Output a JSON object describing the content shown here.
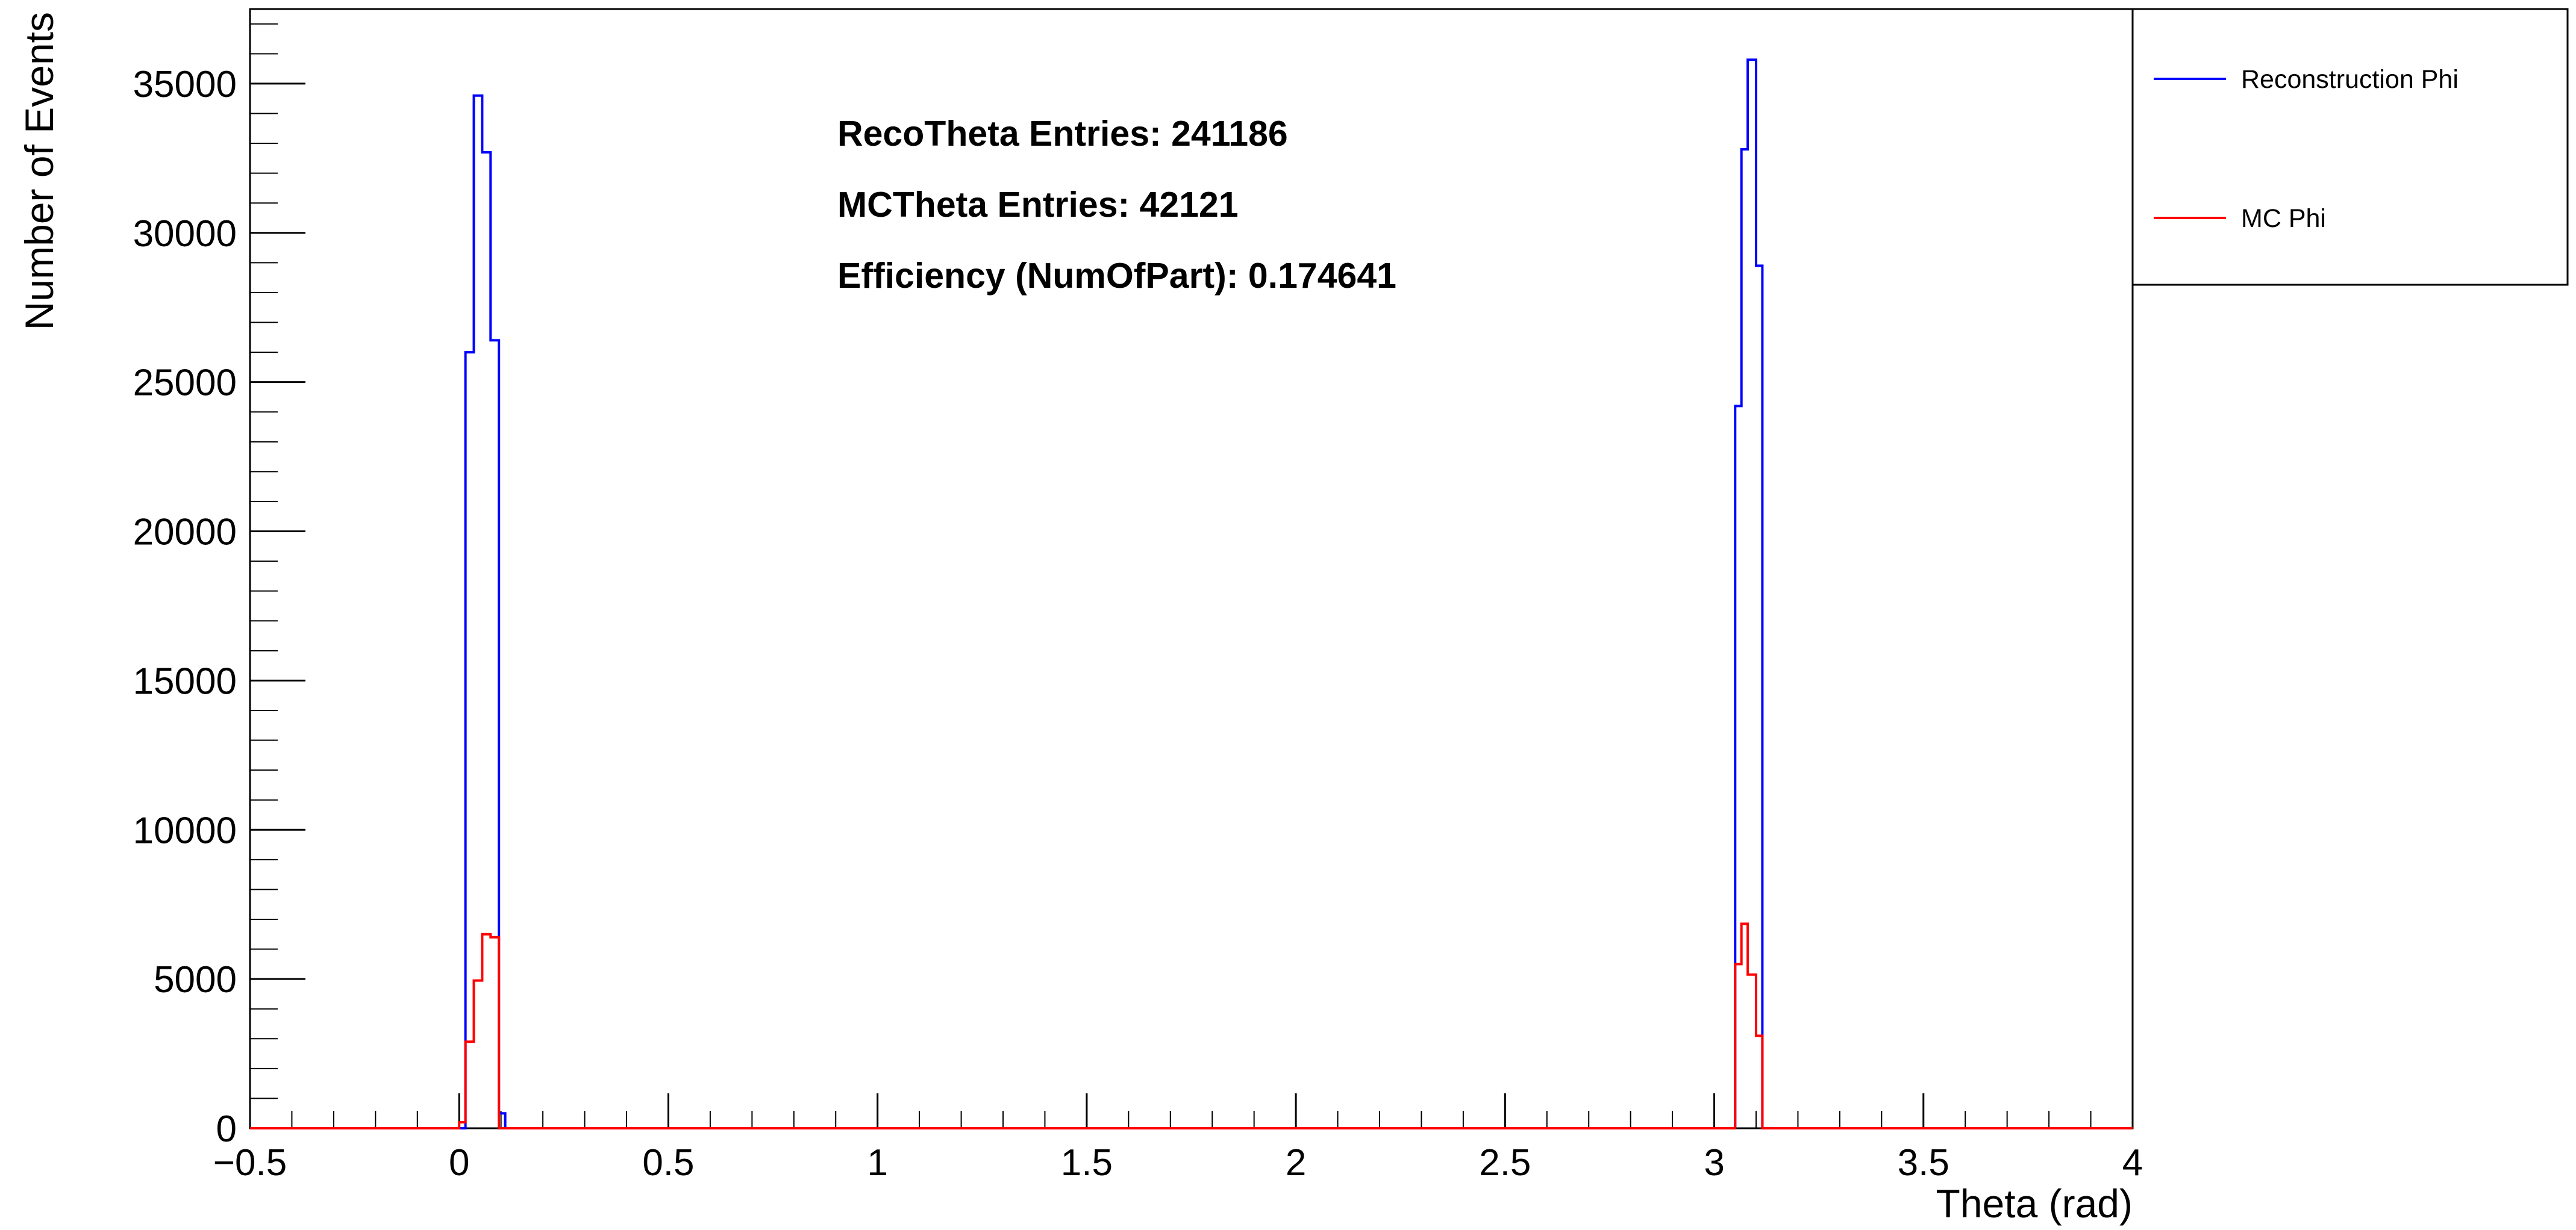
{
  "chart_data": {
    "type": "histogram",
    "xlabel": "Theta (rad)",
    "ylabel": "Number of Events",
    "xlim": [
      -0.5,
      4.0
    ],
    "ylim": [
      0,
      37500
    ],
    "x_ticks": [
      -0.5,
      0,
      0.5,
      1,
      1.5,
      2,
      2.5,
      3,
      3.5,
      4
    ],
    "x_tick_labels": [
      "−0.5",
      "0",
      "0.5",
      "1",
      "1.5",
      "2",
      "2.5",
      "3",
      "3.5",
      "4"
    ],
    "y_ticks": [
      0,
      5000,
      10000,
      15000,
      20000,
      25000,
      30000,
      35000
    ],
    "y_tick_labels": [
      "0",
      "5000",
      "10000",
      "15000",
      "20000",
      "25000",
      "30000",
      "35000"
    ],
    "grid": false,
    "legend_position": "top-right, outside plot frame",
    "stats": [
      "RecoTheta Entries: 241186",
      "MCTheta Entries: 42121",
      "Efficiency (NumOfPart): 0.174641"
    ],
    "series": [
      {
        "name": "Reconstruction Phi",
        "color": "#0000ff",
        "bins": [
          {
            "x0": 0.015,
            "x1": 0.035,
            "value": 26000
          },
          {
            "x0": 0.035,
            "x1": 0.055,
            "value": 34600
          },
          {
            "x0": 0.055,
            "x1": 0.075,
            "value": 32700
          },
          {
            "x0": 0.075,
            "x1": 0.095,
            "value": 26400
          },
          {
            "x0": 0.095,
            "x1": 0.11,
            "value": 500
          },
          {
            "x0": 3.05,
            "x1": 3.065,
            "value": 24200
          },
          {
            "x0": 3.065,
            "x1": 3.08,
            "value": 32800
          },
          {
            "x0": 3.08,
            "x1": 3.1,
            "value": 35800
          },
          {
            "x0": 3.1,
            "x1": 3.115,
            "value": 28900
          }
        ]
      },
      {
        "name": "MC Phi",
        "color": "#ff0000",
        "bins": [
          {
            "x0": 0.0,
            "x1": 0.015,
            "value": 200
          },
          {
            "x0": 0.015,
            "x1": 0.035,
            "value": 2900
          },
          {
            "x0": 0.035,
            "x1": 0.055,
            "value": 4950
          },
          {
            "x0": 0.055,
            "x1": 0.075,
            "value": 6500
          },
          {
            "x0": 0.075,
            "x1": 0.095,
            "value": 6400
          },
          {
            "x0": 3.05,
            "x1": 3.065,
            "value": 5500
          },
          {
            "x0": 3.065,
            "x1": 3.08,
            "value": 6850
          },
          {
            "x0": 3.08,
            "x1": 3.1,
            "value": 5150
          },
          {
            "x0": 3.1,
            "x1": 3.115,
            "value": 3100
          }
        ]
      }
    ]
  }
}
